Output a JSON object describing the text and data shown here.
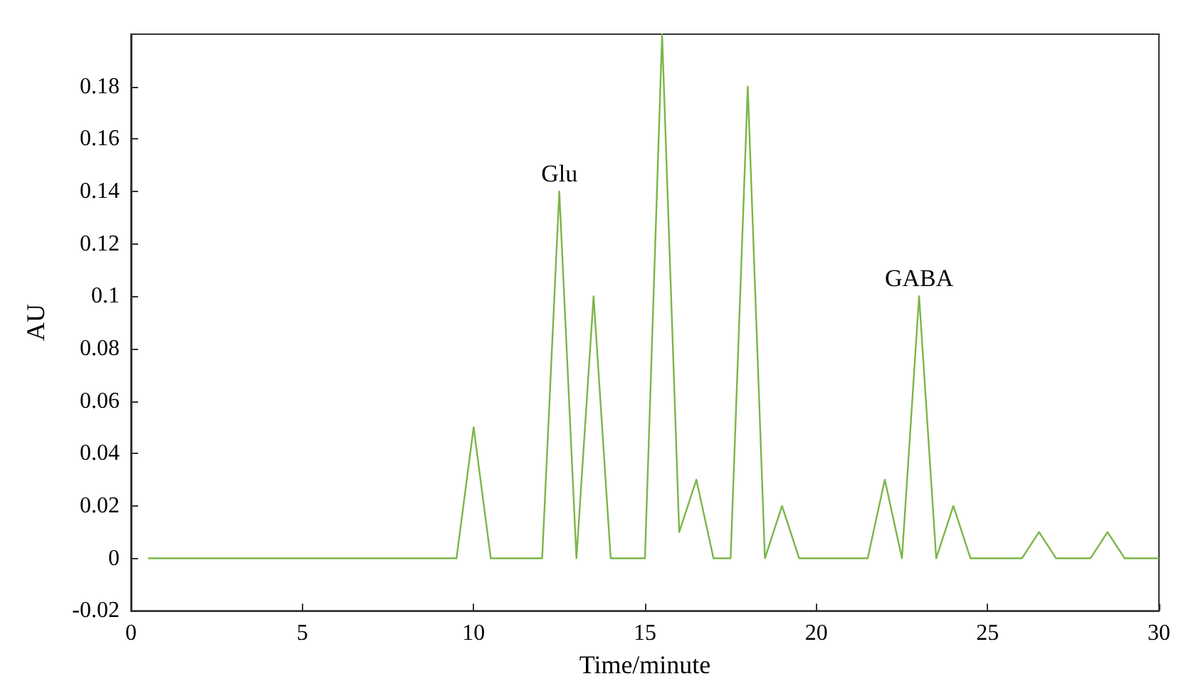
{
  "chart_data": {
    "type": "line",
    "xlabel": "Time/minute",
    "ylabel": "AU",
    "x": [
      0.5,
      9.5,
      10,
      10.5,
      12,
      12.5,
      13,
      13.5,
      14,
      15,
      15.5,
      16,
      16.5,
      17,
      17.5,
      18,
      18.5,
      19,
      19.5,
      21.5,
      22,
      22.5,
      23,
      23.5,
      24,
      24.5,
      26,
      26.5,
      27,
      28,
      28.5,
      29,
      30
    ],
    "series": [
      {
        "color": "#7ab648",
        "values": [
          0,
          0,
          0.05,
          0,
          0,
          0.14,
          0,
          0.1,
          0,
          0,
          0.2,
          0.01,
          0.03,
          0,
          0,
          0.18,
          0,
          0.02,
          0,
          0,
          0.03,
          0,
          0.1,
          0,
          0.02,
          0,
          0,
          0.01,
          0,
          0,
          0.01,
          0,
          0
        ]
      }
    ],
    "xlim": [
      0,
      30
    ],
    "xticks": [
      0,
      5,
      10,
      15,
      20,
      25,
      30
    ],
    "ylim": [
      -0.02,
      0.2
    ],
    "yticks": [
      -0.02,
      0,
      0.02,
      0.04,
      0.06,
      0.08,
      0.1,
      0.12,
      0.14,
      0.16,
      0.18
    ],
    "annotations": [
      {
        "text": "Glu",
        "x": 12.5,
        "y": 0.14
      },
      {
        "text": "GABA",
        "x": 23,
        "y": 0.1
      }
    ],
    "grid": false,
    "marker": "none",
    "line_style": "solid"
  }
}
